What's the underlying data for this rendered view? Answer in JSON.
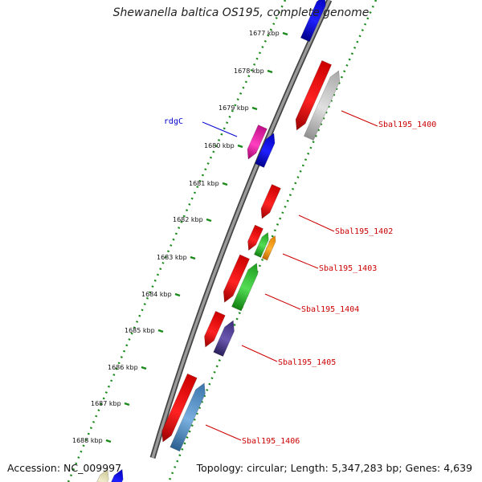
{
  "title": "Shewanella baltica OS195, complete genome",
  "footer": {
    "accession": "Accession: NC_009997",
    "summary": "Topology: circular; Length: 5,347,283 bp; Genes: 4,639"
  },
  "tick_labels": [
    "1677 kbp",
    "1678 kbp",
    "1679 kbp",
    "1680 kbp",
    "1681 kbp",
    "1682 kbp",
    "1683 kbp",
    "1684 kbp",
    "1685 kbp",
    "1686 kbp",
    "1687 kbp",
    "1688 kbp"
  ],
  "gene_labels": [
    {
      "text": "rdgC",
      "color": "#0000cc"
    },
    {
      "text": "Sbal195_1400",
      "color": "#cc0000"
    },
    {
      "text": "Sbal195_1402",
      "color": "#cc0000"
    },
    {
      "text": "Sbal195_1403",
      "color": "#cc0000"
    },
    {
      "text": "Sbal195_1404",
      "color": "#cc0000"
    },
    {
      "text": "Sbal195_1405",
      "color": "#cc0000"
    },
    {
      "text": "Sbal195_1406",
      "color": "#cc0000"
    }
  ],
  "colors": {
    "backbone": "#7a7a7a",
    "tick_ring": "#1a8a1a",
    "red_gene": "#ee0000",
    "blue_gene": "#0000ee",
    "magenta_gene": "#e0119a",
    "gray_gene": "#bdbdbd",
    "green_gene": "#22bb22",
    "orange_gene": "#ff9900",
    "purple_gene": "#4b3a8a",
    "steelblue_gene": "#4a86c0",
    "khaki_gene": "#d8d4a0"
  }
}
